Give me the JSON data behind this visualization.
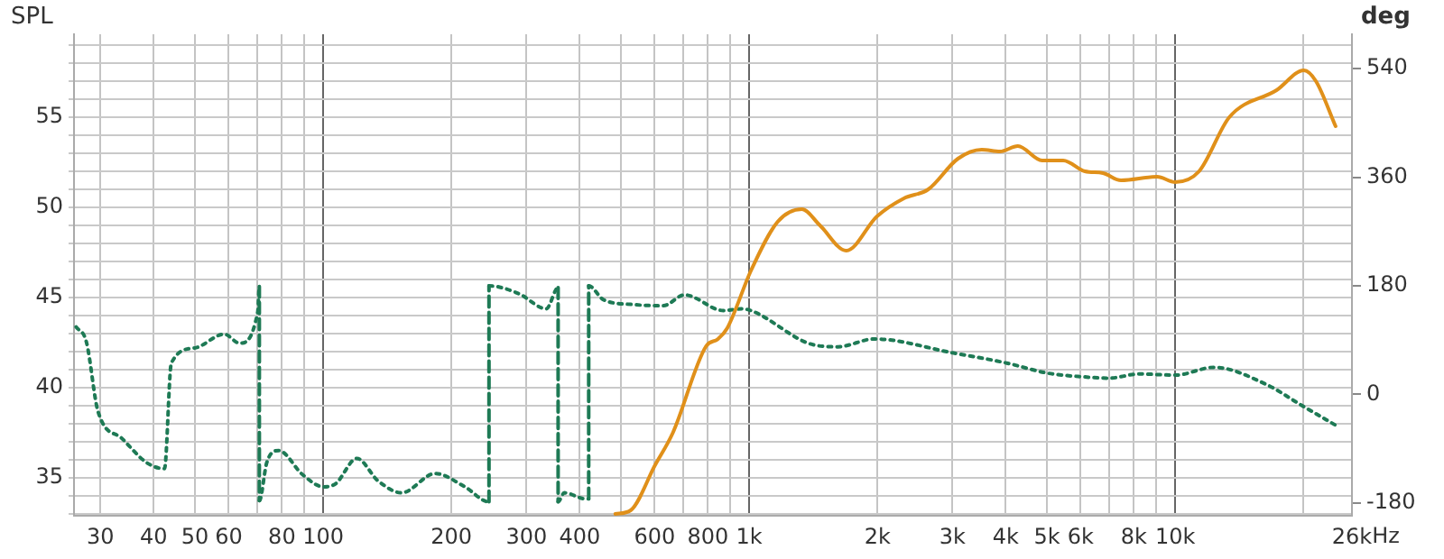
{
  "chart_data": {
    "type": "line",
    "ylabel": "SPL",
    "y2label": "deg",
    "xlim": [
      26,
      26000
    ],
    "xticks": [
      30,
      40,
      50,
      60,
      {
        "value": 70,
        "label": null
      },
      80,
      {
        "value": 90,
        "label": null
      },
      100,
      200,
      300,
      400,
      {
        "value": 500,
        "label": null
      },
      600,
      {
        "value": 700,
        "label": null
      },
      800,
      {
        "value": 900,
        "label": null
      },
      {
        "value": 1000,
        "label": "1k"
      },
      {
        "value": 2000,
        "label": "2k"
      },
      {
        "value": 3000,
        "label": "3k"
      },
      {
        "value": 4000,
        "label": "4k"
      },
      {
        "value": 5000,
        "label": "5k"
      },
      {
        "value": 6000,
        "label": "6k"
      },
      {
        "value": 7000,
        "label": null
      },
      {
        "value": 8000,
        "label": "8k"
      },
      {
        "value": 9000,
        "label": null
      },
      {
        "value": 10000,
        "label": "10k"
      },
      {
        "value": 20000,
        "label": null
      },
      {
        "value": 26000,
        "label": "26k"
      }
    ],
    "xlabel": "Hz",
    "log": "x",
    "ylim": [
      32.9,
      59.6
    ],
    "yticks": [
      {
        "value": 33,
        "label": null
      },
      {
        "value": 34,
        "label": null
      },
      35,
      {
        "value": 36,
        "label": null
      },
      {
        "value": 37,
        "label": null
      },
      {
        "value": 38,
        "label": null
      },
      {
        "value": 39,
        "label": null
      },
      40,
      {
        "value": 41,
        "label": null
      },
      {
        "value": 42,
        "label": null
      },
      {
        "value": 43,
        "label": null
      },
      {
        "value": 44,
        "label": null
      },
      45,
      {
        "value": 46,
        "label": null
      },
      {
        "value": 47,
        "label": null
      },
      {
        "value": 48,
        "label": null
      },
      {
        "value": 49,
        "label": null
      },
      50,
      {
        "value": 51,
        "label": null
      },
      {
        "value": 52,
        "label": null
      },
      {
        "value": 53,
        "label": null
      },
      {
        "value": 54,
        "label": null
      },
      55,
      {
        "value": 56,
        "label": null
      },
      {
        "value": 57,
        "label": null
      },
      {
        "value": 58,
        "label": null
      },
      {
        "value": 59,
        "label": null
      }
    ],
    "y2lim": [
      -201,
      597
    ],
    "y2ticks": [
      -180,
      0,
      180,
      360,
      540
    ],
    "grid": true,
    "legend": false,
    "marker": "none",
    "series": [
      {
        "color": "#e0901a",
        "line_style": "solid",
        "x": [
          485,
          527,
          601,
          662,
          792,
          845,
          888,
          1010,
          1166,
          1330,
          1466,
          1690,
          1995,
          2308,
          2633,
          3090,
          3516,
          3880,
          4273,
          4870,
          5460,
          6138,
          6770,
          7460,
          9070,
          10000,
          11380,
          13400,
          17300,
          20050,
          21400,
          23800
        ],
        "values": [
          33.0,
          33.2,
          35.7,
          37.5,
          42.3,
          42.7,
          43.3,
          46.5,
          49.2,
          49.9,
          49.0,
          47.6,
          49.5,
          50.5,
          51.0,
          52.7,
          53.2,
          53.1,
          53.4,
          52.6,
          52.6,
          52.0,
          51.9,
          51.5,
          51.7,
          51.4,
          52.0,
          55.0,
          56.5,
          57.6,
          57.0,
          54.5
        ]
      },
      {
        "color": "#1e7a55",
        "line_style": "dotted",
        "axis": "y2",
        "x": [
          26.3,
          27.8,
          29.6,
          33.7,
          38.5,
          42.4,
          44.0,
          49.9,
          58.6,
          63.6,
          70.2,
          70.8,
          70.8,
          73.7,
          78.6,
          89.5,
          100,
          106.9,
          120,
          134.4,
          152.8,
          183.2,
          215,
          245,
          245,
          288,
          334,
          356,
          356,
          368,
          413,
          420,
          420,
          455,
          534,
          628,
          705,
          870,
          960,
          1010,
          1420,
          1615,
          1966,
          3002,
          4024,
          5047,
          6138,
          7000,
          8232,
          10000,
          12340,
          16320,
          19800,
          23800
        ],
        "values": [
          112,
          87,
          -28,
          -73,
          -113,
          -123,
          52,
          77,
          100,
          85,
          137,
          179,
          -176,
          -113,
          -93,
          -133,
          -153,
          -148,
          -106,
          -143,
          -163,
          -131,
          -153,
          -178,
          180,
          167,
          142,
          177,
          -178,
          -163,
          -173,
          -173,
          180,
          157,
          149,
          147,
          165,
          139,
          142,
          139,
          82,
          79,
          92,
          69,
          52,
          35,
          29,
          27,
          34,
          32,
          45,
          17,
          -18,
          -51
        ]
      }
    ]
  }
}
